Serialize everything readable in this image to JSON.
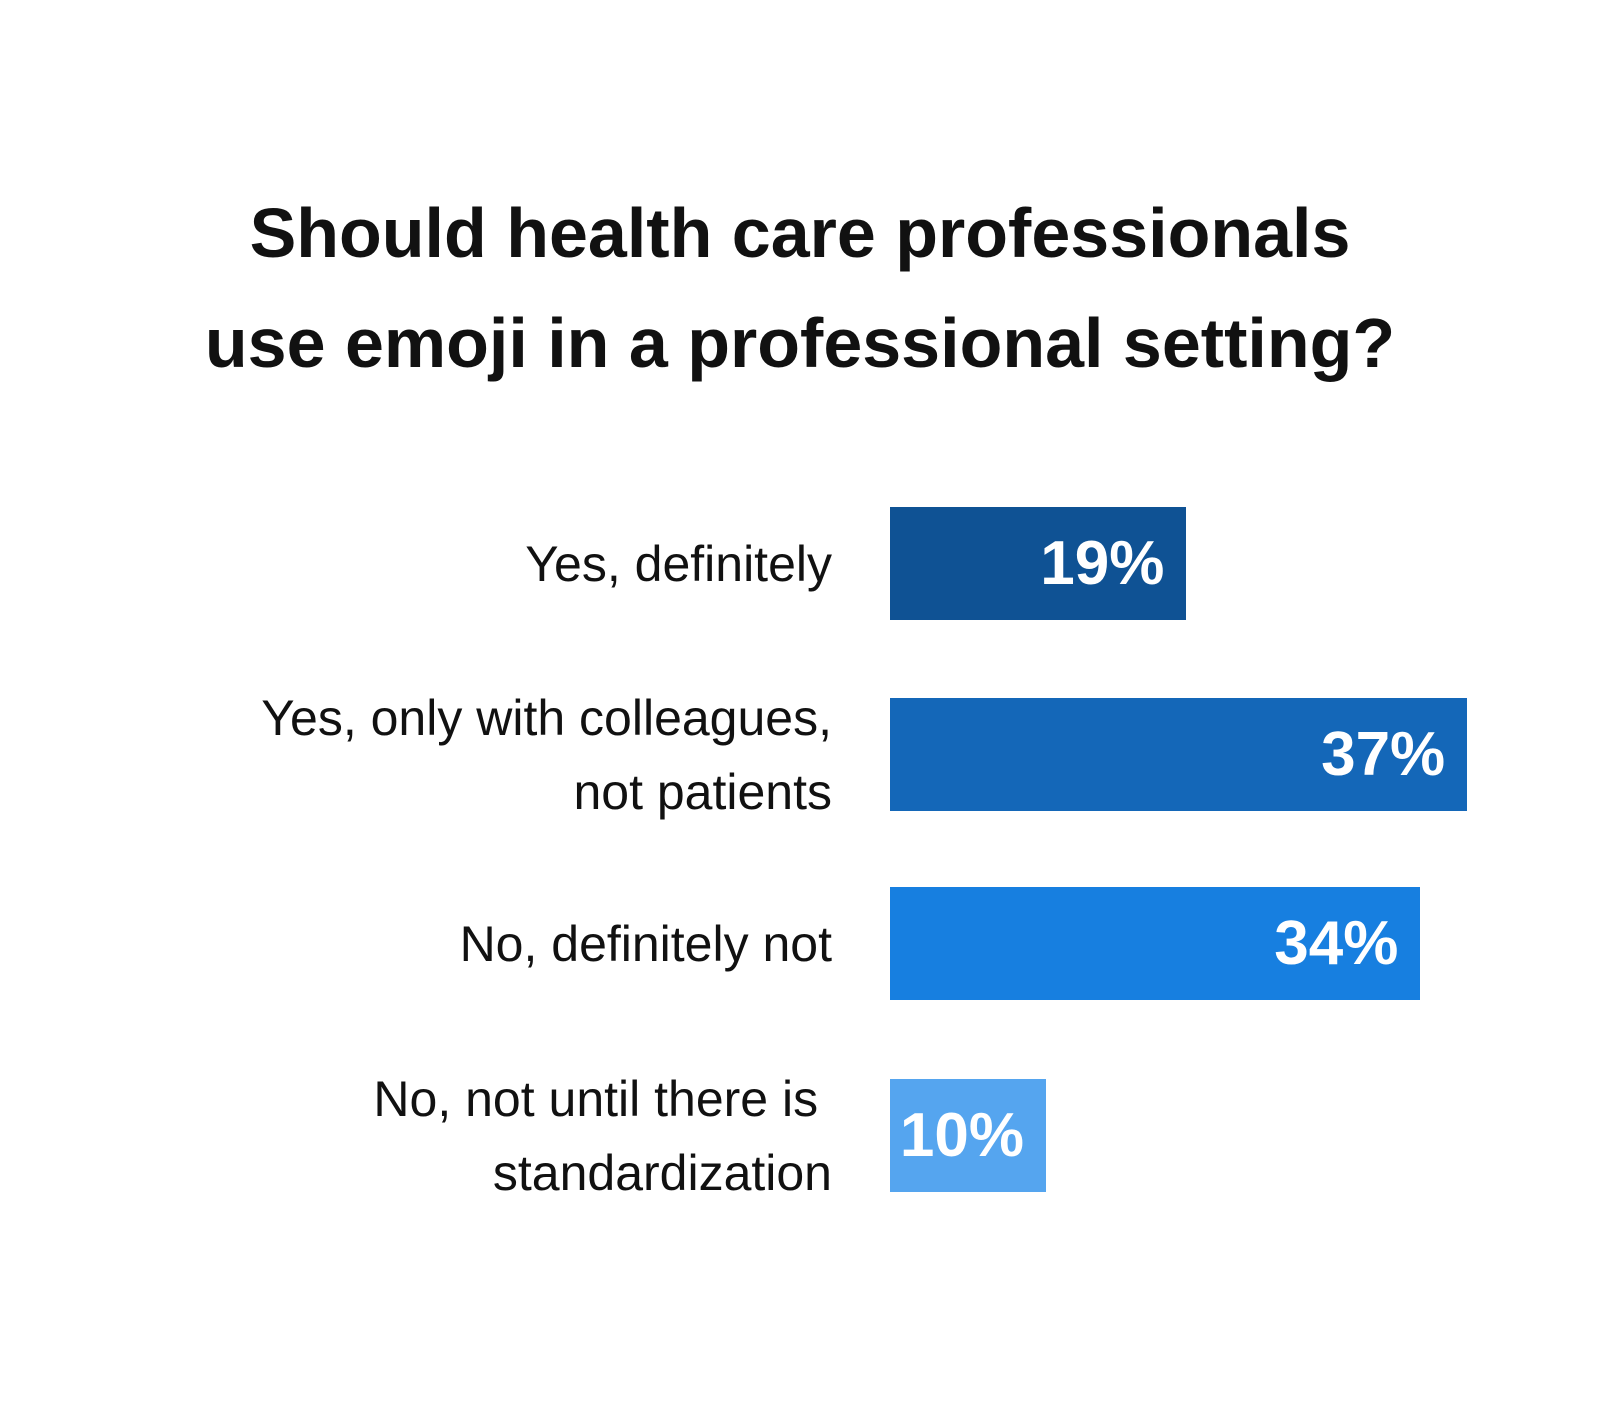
{
  "chart_data": {
    "type": "bar",
    "orientation": "horizontal",
    "title": "Should health care professionals\nuse emoji in a professional setting?",
    "categories": [
      "Yes, definitely",
      "Yes, only with colleagues,\nnot patients",
      "No, definitely not",
      "No, not until there is \nstandardization"
    ],
    "values": [
      19,
      37,
      34,
      10
    ],
    "value_labels": [
      "19%",
      "37%",
      "34%",
      "10%"
    ],
    "colors": [
      "#0f5294",
      "#1467b8",
      "#177fe0",
      "#55a5ef"
    ]
  }
}
